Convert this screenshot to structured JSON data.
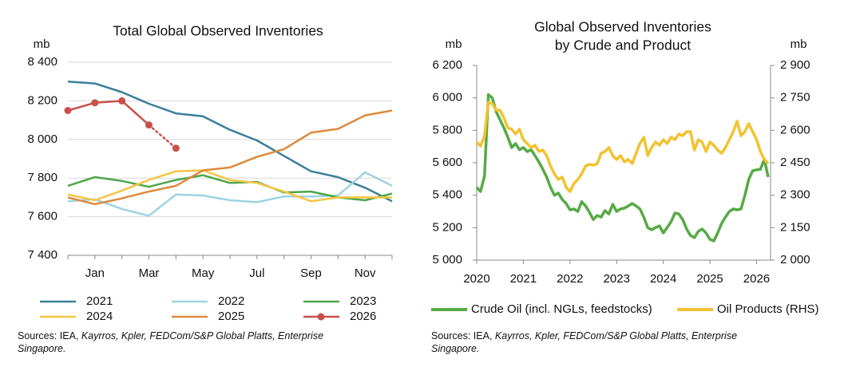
{
  "chart_data": [
    {
      "type": "line",
      "title": "Total Global Observed Inventories",
      "ylabel": "mb",
      "categories": [
        null,
        "Jan",
        null,
        "Mar",
        null,
        "May",
        null,
        "Jul",
        null,
        "Sep",
        null,
        "Nov",
        null
      ],
      "ylim": [
        7400,
        8400
      ],
      "yticks": [
        {
          "value": 7400,
          "label": "7 400"
        },
        {
          "value": 7600,
          "label": "7 600"
        },
        {
          "value": 7800,
          "label": "7 800"
        },
        {
          "value": 8000,
          "label": "8 000"
        },
        {
          "value": 8200,
          "label": "8 200"
        },
        {
          "value": 8400,
          "label": "8 400"
        }
      ],
      "grid": true,
      "series": [
        {
          "name": "2021",
          "color": "#3a7f9a",
          "values": [
            8300,
            8290,
            8245,
            8185,
            8135,
            8120,
            8050,
            7995,
            7915,
            7835,
            7805,
            7750,
            7680
          ]
        },
        {
          "name": "2022",
          "color": "#9fd3e3",
          "values": [
            7680,
            7690,
            7640,
            7605,
            7715,
            7710,
            7685,
            7675,
            7705,
            7705,
            7710,
            7830,
            7760
          ]
        },
        {
          "name": "2023",
          "color": "#4ea64a",
          "values": [
            7760,
            7805,
            7785,
            7755,
            7790,
            7815,
            7775,
            7780,
            7725,
            7730,
            7700,
            7685,
            7720
          ]
        },
        {
          "name": "2024",
          "color": "#f4c542",
          "values": [
            7715,
            7685,
            7735,
            7790,
            7835,
            7840,
            7790,
            7775,
            7730,
            7680,
            7700,
            7700,
            7700
          ]
        },
        {
          "name": "2025",
          "color": "#dd8a3b",
          "values": [
            7700,
            7665,
            7695,
            7730,
            7760,
            7840,
            7855,
            7910,
            7950,
            8035,
            8055,
            8125,
            8150
          ]
        },
        {
          "name": "2026",
          "color": "#c9504a",
          "marker": true,
          "dotted_from": 3,
          "values": [
            8150,
            8190,
            8200,
            8075,
            7955,
            null,
            null,
            null,
            null,
            null,
            null,
            null,
            null
          ]
        }
      ],
      "source": [
        "Sources: IEA, ",
        "Kayrros, Kpler, FEDCom/S&P Global Platts, Enterprise Singapore."
      ]
    },
    {
      "type": "line",
      "title": [
        "Global Observed Inventories",
        "by Crude and Product"
      ],
      "ylabel": "mb",
      "y2label": "mb",
      "x": [
        2020,
        2020.083,
        2020.167,
        2020.25,
        2020.333,
        2020.417,
        2020.5,
        2020.583,
        2020.667,
        2020.75,
        2020.833,
        2020.917,
        2021,
        2021.083,
        2021.167,
        2021.25,
        2021.333,
        2021.417,
        2021.5,
        2021.583,
        2021.667,
        2021.75,
        2021.833,
        2021.917,
        2022,
        2022.083,
        2022.167,
        2022.25,
        2022.333,
        2022.417,
        2022.5,
        2022.583,
        2022.667,
        2022.75,
        2022.833,
        2022.917,
        2023,
        2023.083,
        2023.167,
        2023.25,
        2023.333,
        2023.417,
        2023.5,
        2023.583,
        2023.667,
        2023.75,
        2023.833,
        2023.917,
        2024,
        2024.083,
        2024.167,
        2024.25,
        2024.333,
        2024.417,
        2024.5,
        2024.583,
        2024.667,
        2024.75,
        2024.833,
        2024.917,
        2025,
        2025.083,
        2025.167,
        2025.25,
        2025.333,
        2025.417,
        2025.5,
        2025.583,
        2025.667,
        2025.75,
        2025.833,
        2025.917,
        2026,
        2026.083,
        2026.167,
        2026.25
      ],
      "xlim": [
        2020,
        2026.3
      ],
      "xticks": [
        2020,
        2021,
        2022,
        2023,
        2024,
        2025,
        2026
      ],
      "ylim": [
        5000,
        6200
      ],
      "yticks": [
        {
          "value": 5000,
          "label": "5 000"
        },
        {
          "value": 5200,
          "label": "5 200"
        },
        {
          "value": 5400,
          "label": "5 400"
        },
        {
          "value": 5600,
          "label": "5 600"
        },
        {
          "value": 5800,
          "label": "5 800"
        },
        {
          "value": 6000,
          "label": "6 000"
        },
        {
          "value": 6200,
          "label": "6 200"
        }
      ],
      "y2lim": [
        2000,
        2900
      ],
      "y2ticks": [
        {
          "value": 2000,
          "label": "2 000"
        },
        {
          "value": 2150,
          "label": "2 150"
        },
        {
          "value": 2300,
          "label": "2 300"
        },
        {
          "value": 2450,
          "label": "2 450"
        },
        {
          "value": 2600,
          "label": "2 600"
        },
        {
          "value": 2750,
          "label": "2 750"
        },
        {
          "value": 2900,
          "label": "2 900"
        }
      ],
      "grid": false,
      "series": [
        {
          "name": "Crude Oil (incl. NGLs, feedstocks)",
          "color": "#56aa45",
          "values": [
            5448,
            5423,
            5520,
            6020,
            6000,
            5915,
            5865,
            5815,
            5757,
            5694,
            5718,
            5680,
            5694,
            5669,
            5680,
            5644,
            5605,
            5560,
            5512,
            5448,
            5400,
            5413,
            5374,
            5349,
            5310,
            5315,
            5300,
            5360,
            5334,
            5295,
            5250,
            5275,
            5265,
            5305,
            5285,
            5344,
            5300,
            5315,
            5320,
            5334,
            5349,
            5334,
            5315,
            5265,
            5200,
            5187,
            5200,
            5211,
            5167,
            5200,
            5236,
            5290,
            5285,
            5250,
            5192,
            5152,
            5138,
            5177,
            5192,
            5167,
            5128,
            5118,
            5167,
            5226,
            5265,
            5300,
            5315,
            5310,
            5315,
            5400,
            5497,
            5551,
            5556,
            5560,
            5620,
            5512
          ]
        },
        {
          "name": "Oil Products (RHS)",
          "color": "#f2c230",
          "axis": "y2",
          "values": [
            2546,
            2527,
            2575,
            2730,
            2723,
            2693,
            2693,
            2657,
            2612,
            2605,
            2583,
            2605,
            2557,
            2539,
            2520,
            2531,
            2502,
            2509,
            2483,
            2435,
            2398,
            2373,
            2384,
            2336,
            2317,
            2354,
            2373,
            2398,
            2435,
            2443,
            2439,
            2446,
            2494,
            2502,
            2520,
            2483,
            2465,
            2483,
            2454,
            2465,
            2446,
            2494,
            2539,
            2568,
            2483,
            2520,
            2546,
            2531,
            2557,
            2539,
            2568,
            2557,
            2583,
            2575,
            2594,
            2594,
            2509,
            2557,
            2546,
            2502,
            2546,
            2531,
            2509,
            2494,
            2520,
            2557,
            2594,
            2642,
            2575,
            2594,
            2631,
            2594,
            2557,
            2502,
            2465,
            2446
          ]
        }
      ],
      "source": [
        "Sources: IEA, ",
        "Kayrros, Kpler, FEDCom/S&P Global Platts, Enterprise Singapore."
      ]
    }
  ]
}
